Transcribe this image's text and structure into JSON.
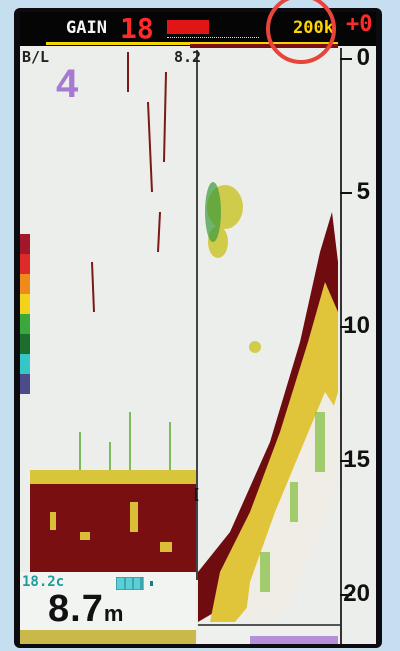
{
  "header": {
    "gain_label": "GAIN",
    "gain_value": "18",
    "gain_level": 0.46,
    "frequency": "200k",
    "top_zero": "+0"
  },
  "left_panel": {
    "mode_label": "B/L",
    "zoom_number": "4",
    "zoom_range": "8.2",
    "marker": "[",
    "color_scale": [
      "#a1182a",
      "#e02a2a",
      "#f08a1a",
      "#f3d21a",
      "#3aa83a",
      "#1b6e2c",
      "#36c6c6",
      "#4c4c8c"
    ]
  },
  "depth_scale": {
    "labels": [
      "0",
      "5",
      "10",
      "15",
      "20"
    ],
    "units": "m"
  },
  "bottom": {
    "temperature": "18.2c",
    "battery_level": 0.8,
    "depth_value": "8.7",
    "depth_unit": "m"
  },
  "colors": {
    "gain": "#ff2a2a",
    "frequency": "#ffd400",
    "zoom": "#a67ad2",
    "temperature": "#1c9c9a",
    "highlight": "#e8443a"
  }
}
